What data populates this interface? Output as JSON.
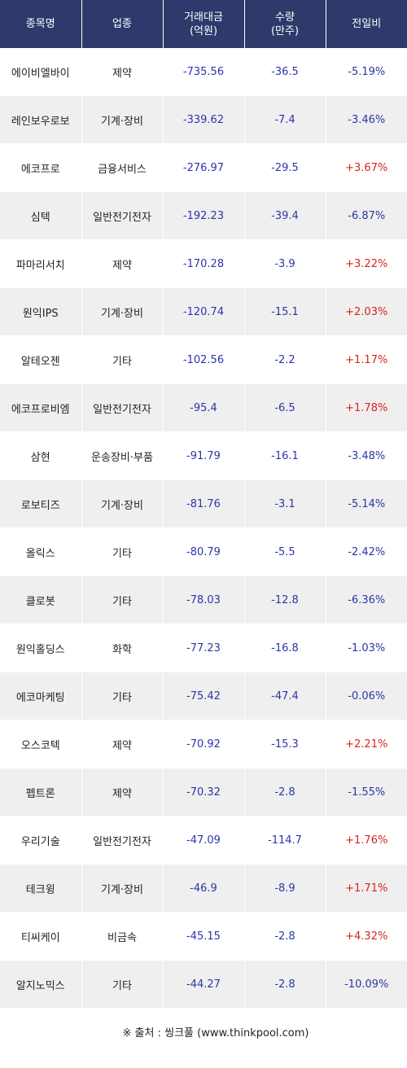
{
  "header": {
    "name": "종목명",
    "sector": "업종",
    "amount_line1": "거래대금",
    "amount_line2": "(억원)",
    "volume_line1": "수량",
    "volume_line2": "(만주)",
    "change": "전일비"
  },
  "rows": [
    {
      "name": "에이비엘바이",
      "sector": "제약",
      "amount": "-735.56",
      "volume": "-36.5",
      "change": "-5.19%",
      "dir": "down"
    },
    {
      "name": "레인보우로보",
      "sector": "기계·장비",
      "amount": "-339.62",
      "volume": "-7.4",
      "change": "-3.46%",
      "dir": "down"
    },
    {
      "name": "에코프로",
      "sector": "금융서비스",
      "amount": "-276.97",
      "volume": "-29.5",
      "change": "+3.67%",
      "dir": "up"
    },
    {
      "name": "심텍",
      "sector": "일반전기전자",
      "amount": "-192.23",
      "volume": "-39.4",
      "change": "-6.87%",
      "dir": "down"
    },
    {
      "name": "파마리서치",
      "sector": "제약",
      "amount": "-170.28",
      "volume": "-3.9",
      "change": "+3.22%",
      "dir": "up"
    },
    {
      "name": "원익IPS",
      "sector": "기계·장비",
      "amount": "-120.74",
      "volume": "-15.1",
      "change": "+2.03%",
      "dir": "up"
    },
    {
      "name": "알테오젠",
      "sector": "기타",
      "amount": "-102.56",
      "volume": "-2.2",
      "change": "+1.17%",
      "dir": "up"
    },
    {
      "name": "에코프로비엠",
      "sector": "일반전기전자",
      "amount": "-95.4",
      "volume": "-6.5",
      "change": "+1.78%",
      "dir": "up"
    },
    {
      "name": "삼현",
      "sector": "운송장비·부품",
      "amount": "-91.79",
      "volume": "-16.1",
      "change": "-3.48%",
      "dir": "down"
    },
    {
      "name": "로보티즈",
      "sector": "기계·장비",
      "amount": "-81.76",
      "volume": "-3.1",
      "change": "-5.14%",
      "dir": "down"
    },
    {
      "name": "올릭스",
      "sector": "기타",
      "amount": "-80.79",
      "volume": "-5.5",
      "change": "-2.42%",
      "dir": "down"
    },
    {
      "name": "클로봇",
      "sector": "기타",
      "amount": "-78.03",
      "volume": "-12.8",
      "change": "-6.36%",
      "dir": "down"
    },
    {
      "name": "원익홀딩스",
      "sector": "화학",
      "amount": "-77.23",
      "volume": "-16.8",
      "change": "-1.03%",
      "dir": "down"
    },
    {
      "name": "에코마케팅",
      "sector": "기타",
      "amount": "-75.42",
      "volume": "-47.4",
      "change": "-0.06%",
      "dir": "down"
    },
    {
      "name": "오스코텍",
      "sector": "제약",
      "amount": "-70.92",
      "volume": "-15.3",
      "change": "+2.21%",
      "dir": "up"
    },
    {
      "name": "펩트론",
      "sector": "제약",
      "amount": "-70.32",
      "volume": "-2.8",
      "change": "-1.55%",
      "dir": "down"
    },
    {
      "name": "우리기술",
      "sector": "일반전기전자",
      "amount": "-47.09",
      "volume": "-114.7",
      "change": "+1.76%",
      "dir": "up"
    },
    {
      "name": "테크윙",
      "sector": "기계·장비",
      "amount": "-46.9",
      "volume": "-8.9",
      "change": "+1.71%",
      "dir": "up"
    },
    {
      "name": "티씨케이",
      "sector": "비금속",
      "amount": "-45.15",
      "volume": "-2.8",
      "change": "+4.32%",
      "dir": "up"
    },
    {
      "name": "알지노믹스",
      "sector": "기타",
      "amount": "-44.27",
      "volume": "-2.8",
      "change": "-10.09%",
      "dir": "down"
    }
  ],
  "source": "※ 출처 : 씽크풀 (www.thinkpool.com)",
  "colors": {
    "header_bg": "#2d3a6b",
    "up": "#d9221e",
    "down": "#2a36a8",
    "stripe": "#efefef"
  }
}
